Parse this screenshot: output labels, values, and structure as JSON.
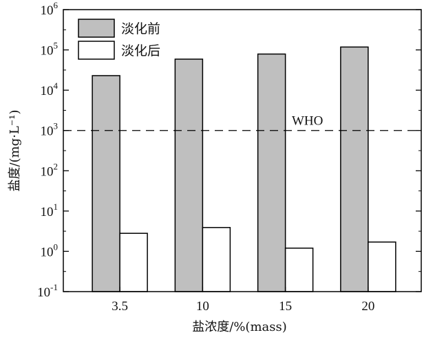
{
  "chart_data": {
    "type": "bar",
    "title": "",
    "xlabel": "盐浓度/%(mass)",
    "ylabel": "盐度/(mg·L⁻¹)",
    "yscale": "log",
    "ylim": [
      0.1,
      1000000
    ],
    "categories": [
      "3.5",
      "10",
      "15",
      "20"
    ],
    "series": [
      {
        "name": "淡化前",
        "color": "#bfbfbf",
        "values": [
          23000,
          59000,
          79000,
          118000
        ]
      },
      {
        "name": "淡化后",
        "color": "#ffffff",
        "values": [
          2.8,
          3.9,
          1.2,
          1.7
        ]
      }
    ],
    "y_ticks": [
      {
        "value": 0.1,
        "base": "10",
        "exp": "-1"
      },
      {
        "value": 1,
        "base": "10",
        "exp": "0"
      },
      {
        "value": 10,
        "base": "10",
        "exp": "1"
      },
      {
        "value": 100,
        "base": "10",
        "exp": "2"
      },
      {
        "value": 1000,
        "base": "10",
        "exp": "3"
      },
      {
        "value": 10000,
        "base": "10",
        "exp": "4"
      },
      {
        "value": 100000,
        "base": "10",
        "exp": "5"
      },
      {
        "value": 1000000,
        "base": "10",
        "exp": "6"
      }
    ],
    "reference_line": {
      "label": "WHO",
      "value": 1000,
      "style": "dashed"
    },
    "legend": {
      "position": "top-left"
    },
    "grid": false
  }
}
